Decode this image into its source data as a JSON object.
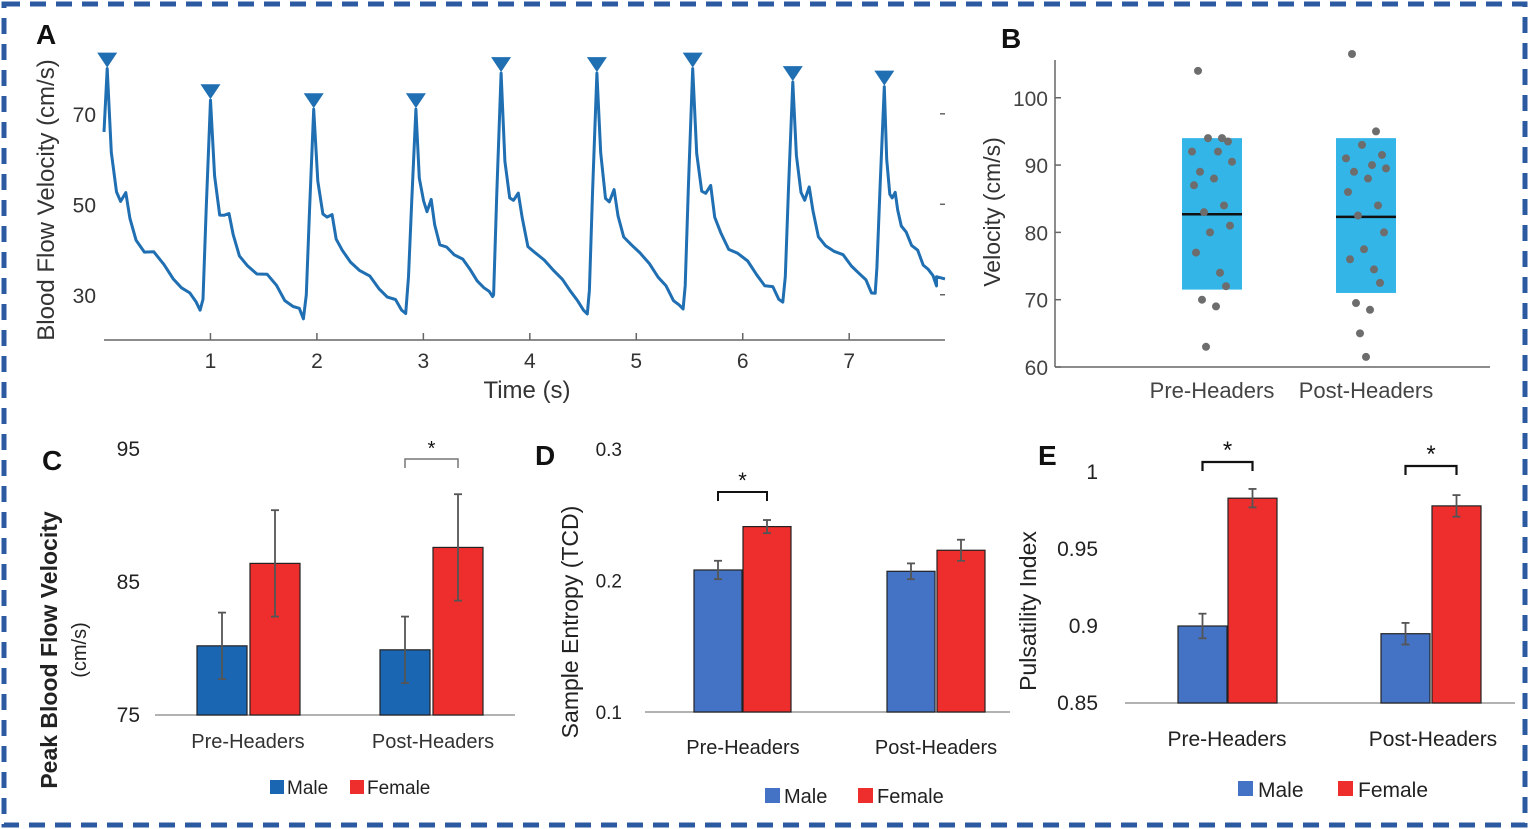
{
  "colors": {
    "border": "#2c5aa0",
    "trace": "#1f6fb2",
    "marker": "#1f6fb2",
    "box": "#33b5e8",
    "dot": "#6d6d6d",
    "male_c": "#1a66b2",
    "male": "#4472c4",
    "female": "#ee2d2d",
    "axis": "#666666",
    "text": "#222222"
  },
  "chart_data": [
    {
      "panel": "A",
      "type": "line",
      "xlabel": "Time (s)",
      "ylabel": "Blood Flow Velocity (cm/s)",
      "xticks": [
        1,
        2,
        3,
        4,
        5,
        6,
        7
      ],
      "yticks": [
        30,
        50,
        70
      ],
      "xlim": [
        0,
        7.9
      ],
      "ylim": [
        20,
        83
      ],
      "beat_period_s": 0.96,
      "peaks": [
        {
          "t": 0.03,
          "v": 80
        },
        {
          "t": 1.0,
          "v": 73
        },
        {
          "t": 1.97,
          "v": 71
        },
        {
          "t": 2.93,
          "v": 71
        },
        {
          "t": 3.73,
          "v": 79
        },
        {
          "t": 4.63,
          "v": 79
        },
        {
          "t": 5.53,
          "v": 80
        },
        {
          "t": 6.47,
          "v": 77
        },
        {
          "t": 7.33,
          "v": 76
        }
      ],
      "troughs": [
        27,
        25,
        26,
        30,
        26,
        27,
        28,
        30,
        32
      ]
    },
    {
      "panel": "B",
      "type": "box",
      "ylabel": "Velocity (cm/s)",
      "categories": [
        "Pre-Headers",
        "Post-Headers"
      ],
      "yticks": [
        60,
        70,
        80,
        90,
        100
      ],
      "ylim": [
        60,
        106
      ],
      "boxes": [
        {
          "low": 71.5,
          "high": 94,
          "mean": 82.7
        },
        {
          "low": 71,
          "high": 94,
          "mean": 82.3
        }
      ],
      "points": [
        [
          104,
          94,
          94,
          93.5,
          92,
          92,
          90.5,
          89,
          88,
          87,
          84,
          83,
          81,
          80,
          77,
          74,
          72,
          70,
          69,
          63
        ],
        [
          106.5,
          95,
          93,
          91.5,
          91,
          90,
          89.5,
          89,
          88,
          86,
          84,
          82.5,
          80,
          77.5,
          76,
          74.5,
          72.5,
          69.5,
          68.5,
          65,
          61.5
        ]
      ]
    },
    {
      "panel": "C",
      "type": "bar",
      "ylabel": "Peak Blood Flow Velocity (cm/s)",
      "categories": [
        "Pre-Headers",
        "Post-Headers"
      ],
      "yticks": [
        75,
        85,
        95
      ],
      "ylim": [
        75,
        95
      ],
      "series": [
        {
          "name": "Male",
          "values": [
            80.2,
            79.9
          ],
          "err": [
            2.5,
            2.5
          ]
        },
        {
          "name": "Female",
          "values": [
            86.4,
            87.6
          ],
          "err": [
            4.0,
            4.0
          ]
        }
      ],
      "significance": [
        {
          "category": "Post-Headers",
          "label": "*"
        }
      ]
    },
    {
      "panel": "D",
      "type": "bar",
      "ylabel": "Sample Entropy (TCD)",
      "categories": [
        "Pre-Headers",
        "Post-Headers"
      ],
      "yticks": [
        "0.1",
        "0.2",
        "0.3"
      ],
      "ylim": [
        0.1,
        0.3
      ],
      "series": [
        {
          "name": "Male",
          "values": [
            0.208,
            0.207
          ],
          "err": [
            0.007,
            0.006
          ]
        },
        {
          "name": "Female",
          "values": [
            0.241,
            0.223
          ],
          "err": [
            0.005,
            0.008
          ]
        }
      ],
      "significance": [
        {
          "category": "Pre-Headers",
          "label": "*"
        }
      ]
    },
    {
      "panel": "E",
      "type": "bar",
      "ylabel": "Pulsatility Index",
      "categories": [
        "Pre-Headers",
        "Post-Headers"
      ],
      "yticks": [
        "0.85",
        "0.9",
        "0.95",
        "1"
      ],
      "ylim": [
        0.85,
        1.0
      ],
      "series": [
        {
          "name": "Male",
          "values": [
            0.9,
            0.895
          ],
          "err": [
            0.008,
            0.007
          ]
        },
        {
          "name": "Female",
          "values": [
            0.983,
            0.978
          ],
          "err": [
            0.006,
            0.007
          ]
        }
      ],
      "significance": [
        {
          "category": "Pre-Headers",
          "label": "*"
        },
        {
          "category": "Post-Headers",
          "label": "*"
        }
      ]
    }
  ]
}
